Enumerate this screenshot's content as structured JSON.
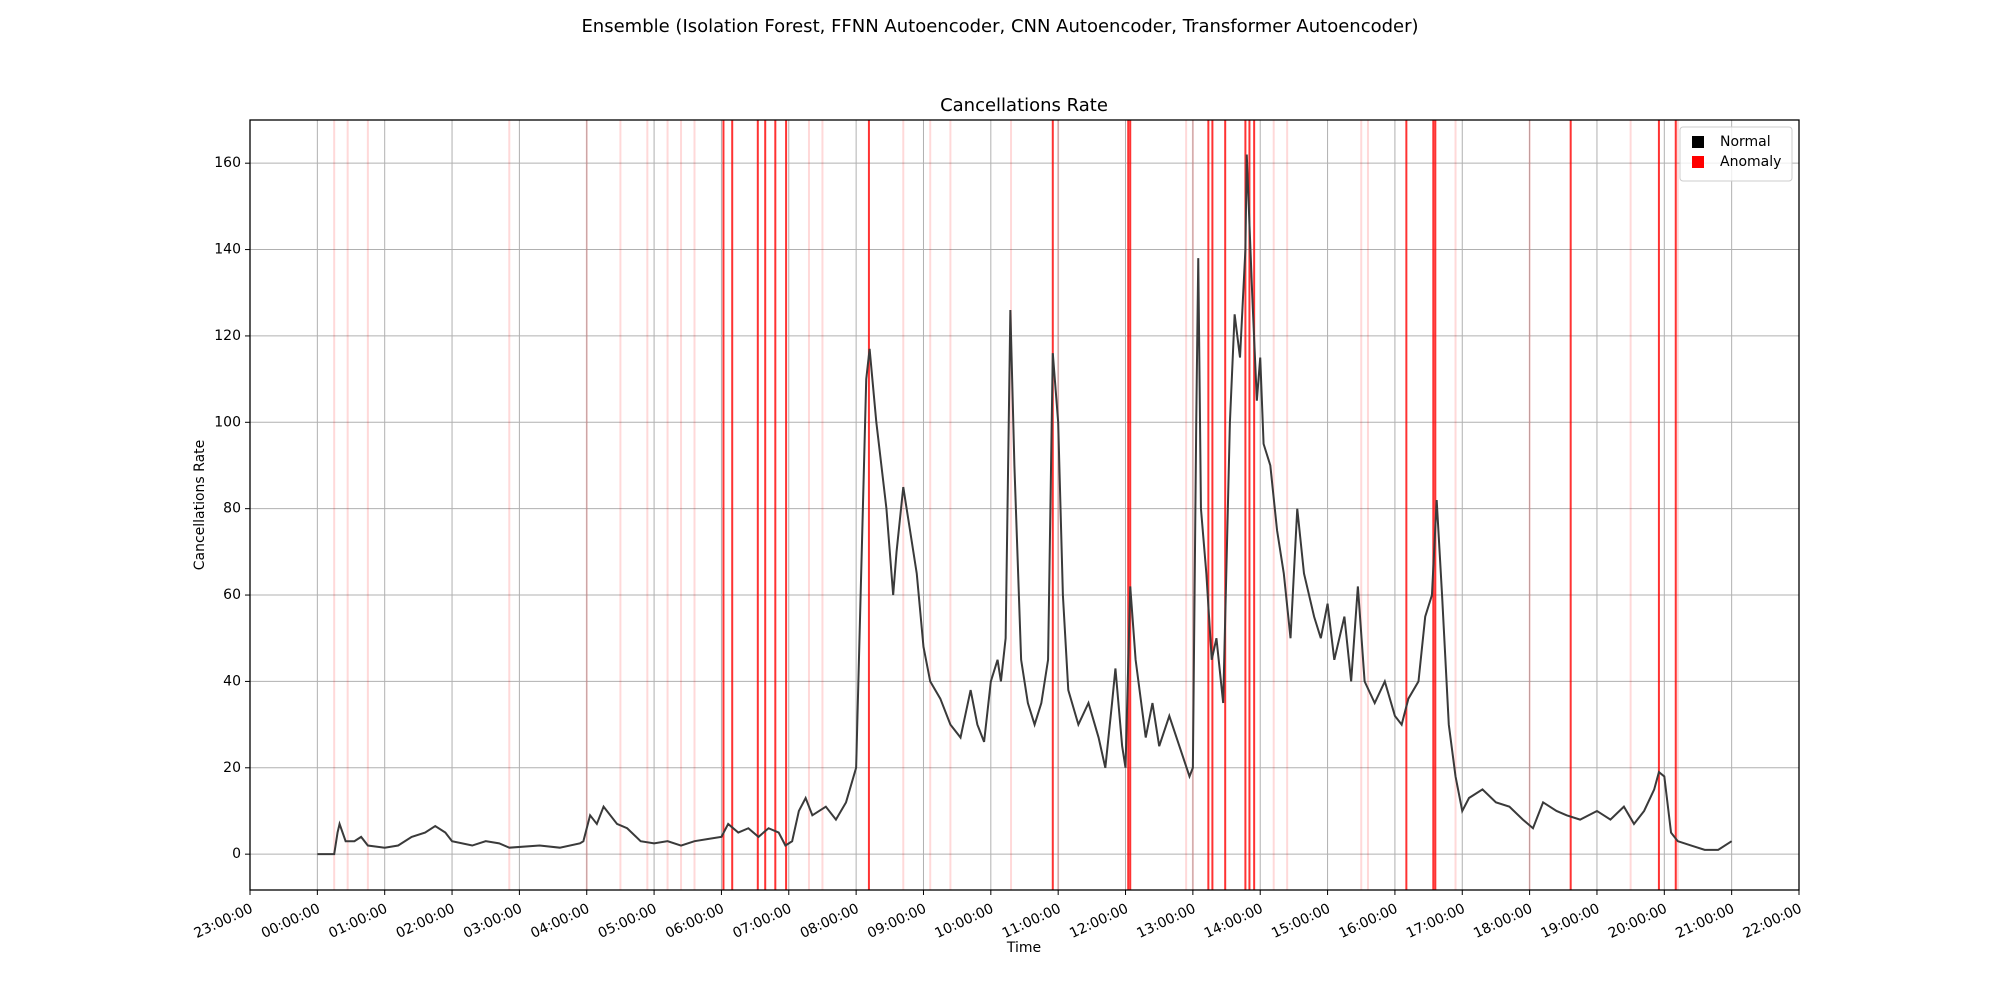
{
  "chart_data": {
    "type": "line",
    "suptitle": "Ensemble (Isolation Forest, FFNN Autoencoder, CNN Autoencoder, Transformer Autoencoder)",
    "title": "Cancellations Rate",
    "xlabel": "Time",
    "ylabel": "Cancellations Rate",
    "xlim": [
      -1,
      22
    ],
    "ylim": [
      -8.3,
      170
    ],
    "xticks": [
      {
        "value": -1,
        "label": "23:00:00"
      },
      {
        "value": 0,
        "label": "00:00:00"
      },
      {
        "value": 1,
        "label": "01:00:00"
      },
      {
        "value": 2,
        "label": "02:00:00"
      },
      {
        "value": 3,
        "label": "03:00:00"
      },
      {
        "value": 4,
        "label": "04:00:00"
      },
      {
        "value": 5,
        "label": "05:00:00"
      },
      {
        "value": 6,
        "label": "06:00:00"
      },
      {
        "value": 7,
        "label": "07:00:00"
      },
      {
        "value": 8,
        "label": "08:00:00"
      },
      {
        "value": 9,
        "label": "09:00:00"
      },
      {
        "value": 10,
        "label": "10:00:00"
      },
      {
        "value": 11,
        "label": "11:00:00"
      },
      {
        "value": 12,
        "label": "12:00:00"
      },
      {
        "value": 13,
        "label": "13:00:00"
      },
      {
        "value": 14,
        "label": "14:00:00"
      },
      {
        "value": 15,
        "label": "15:00:00"
      },
      {
        "value": 16,
        "label": "16:00:00"
      },
      {
        "value": 17,
        "label": "17:00:00"
      },
      {
        "value": 18,
        "label": "18:00:00"
      },
      {
        "value": 19,
        "label": "19:00:00"
      },
      {
        "value": 20,
        "label": "20:00:00"
      },
      {
        "value": 21,
        "label": "21:00:00"
      },
      {
        "value": 22,
        "label": "22:00:00"
      }
    ],
    "yticks": [
      0,
      20,
      40,
      60,
      80,
      100,
      120,
      140,
      160
    ],
    "grid": true,
    "legend": "upper right",
    "series": [
      {
        "name": "Normal",
        "color": "#000000",
        "line_color": "#3a3a3a",
        "x": [
          0,
          0.25,
          0.3,
          0.33,
          0.42,
          0.55,
          0.65,
          0.75,
          1,
          1.2,
          1.4,
          1.6,
          1.75,
          1.9,
          2,
          2.3,
          2.5,
          2.7,
          2.85,
          3.3,
          3.6,
          3.9,
          3.95,
          4.05,
          4.15,
          4.25,
          4.45,
          4.6,
          4.8,
          5,
          5.2,
          5.4,
          5.6,
          5.8,
          6,
          6.1,
          6.25,
          6.4,
          6.55,
          6.7,
          6.85,
          6.95,
          7.05,
          7.15,
          7.25,
          7.35,
          7.55,
          7.7,
          7.85,
          8,
          8.1,
          8.15,
          8.2,
          8.3,
          8.45,
          8.55,
          8.6,
          8.7,
          8.8,
          8.9,
          9,
          9.1,
          9.25,
          9.4,
          9.55,
          9.7,
          9.8,
          9.9,
          10,
          10.1,
          10.15,
          10.22,
          10.29,
          10.35,
          10.45,
          10.55,
          10.65,
          10.75,
          10.85,
          10.92,
          11,
          11.07,
          11.15,
          11.3,
          11.45,
          11.6,
          11.7,
          11.8,
          11.85,
          11.95,
          12,
          12.05,
          12.07,
          12.15,
          12.3,
          12.4,
          12.5,
          12.65,
          12.8,
          12.95,
          13,
          13.05,
          13.08,
          13.12,
          13.2,
          13.28,
          13.35,
          13.45,
          13.55,
          13.62,
          13.7,
          13.78,
          13.8,
          13.88,
          13.95,
          14,
          14.05,
          14.15,
          14.25,
          14.35,
          14.45,
          14.55,
          14.65,
          14.8,
          14.9,
          15,
          15.1,
          15.25,
          15.35,
          15.45,
          15.55,
          15.7,
          15.85,
          16,
          16.1,
          16.2,
          16.35,
          16.45,
          16.55,
          16.62,
          16.7,
          16.8,
          16.9,
          17,
          17.1,
          17.3,
          17.5,
          17.7,
          17.9,
          18.05,
          18.2,
          18.4,
          18.55,
          18.75,
          19,
          19.2,
          19.4,
          19.55,
          19.7,
          19.85,
          19.92,
          20,
          20.1,
          20.2,
          20.4,
          20.6,
          20.8,
          21
        ],
        "values": [
          0,
          0,
          5,
          7,
          3,
          3,
          4,
          2,
          1.5,
          2,
          4,
          5,
          6.5,
          5,
          3,
          2,
          3,
          2.5,
          1.5,
          2,
          1.5,
          2.5,
          3,
          9,
          7,
          11,
          7,
          6,
          3,
          2.5,
          3,
          2,
          3,
          3.5,
          4,
          7,
          5,
          6,
          4,
          6,
          5,
          2,
          3,
          10,
          13,
          9,
          11,
          8,
          12,
          20,
          80,
          110,
          117,
          100,
          80,
          60,
          70,
          85,
          75,
          65,
          48,
          40,
          36,
          30,
          27,
          38,
          30,
          26,
          40,
          45,
          40,
          50,
          126,
          90,
          45,
          35,
          30,
          35,
          45,
          116,
          100,
          60,
          38,
          30,
          35,
          27,
          20,
          35,
          43,
          25,
          20,
          50,
          62,
          45,
          27,
          35,
          25,
          32,
          25,
          18,
          20,
          100,
          138,
          80,
          65,
          45,
          50,
          35,
          100,
          125,
          115,
          140,
          162,
          130,
          105,
          115,
          95,
          90,
          75,
          65,
          50,
          80,
          65,
          55,
          50,
          58,
          45,
          55,
          40,
          62,
          40,
          35,
          40,
          32,
          30,
          36,
          40,
          55,
          60,
          82,
          60,
          30,
          18,
          10,
          13,
          15,
          12,
          11,
          8,
          6,
          12,
          10,
          9,
          8,
          10,
          8,
          11,
          7,
          10,
          15,
          19,
          18,
          5,
          3,
          2,
          1,
          1,
          3
        ]
      },
      {
        "name": "Anomaly",
        "color": "#ff0000",
        "x": [
          6.03,
          6.16,
          6.54,
          6.65,
          6.8,
          6.96,
          8.19,
          10.92,
          12.04,
          12.07,
          13.23,
          13.29,
          13.48,
          13.78,
          13.84,
          13.91,
          16.17,
          16.57,
          16.6,
          18.61,
          19.92,
          20.17,
          0.25,
          0.45,
          0.75,
          2.85,
          4,
          4.5,
          4.9,
          5.2,
          5.4,
          5.6,
          7.3,
          7.5,
          8.7,
          9.1,
          9.4,
          10.3,
          11,
          12.9,
          13,
          14.2,
          14.4,
          15.5,
          15.6,
          16.9,
          18,
          19.5,
          20.2
        ],
        "alphas": [
          0.8,
          0.8,
          0.8,
          0.8,
          0.8,
          0.8,
          0.8,
          0.8,
          0.8,
          0.8,
          0.8,
          0.8,
          0.8,
          0.8,
          0.8,
          0.8,
          0.8,
          0.8,
          0.8,
          0.8,
          0.8,
          0.8,
          0.15,
          0.15,
          0.15,
          0.15,
          0.15,
          0.15,
          0.15,
          0.15,
          0.15,
          0.15,
          0.15,
          0.15,
          0.15,
          0.15,
          0.15,
          0.15,
          0.15,
          0.15,
          0.15,
          0.15,
          0.15,
          0.15,
          0.15,
          0.15,
          0.15,
          0.15,
          0.15
        ]
      }
    ]
  }
}
